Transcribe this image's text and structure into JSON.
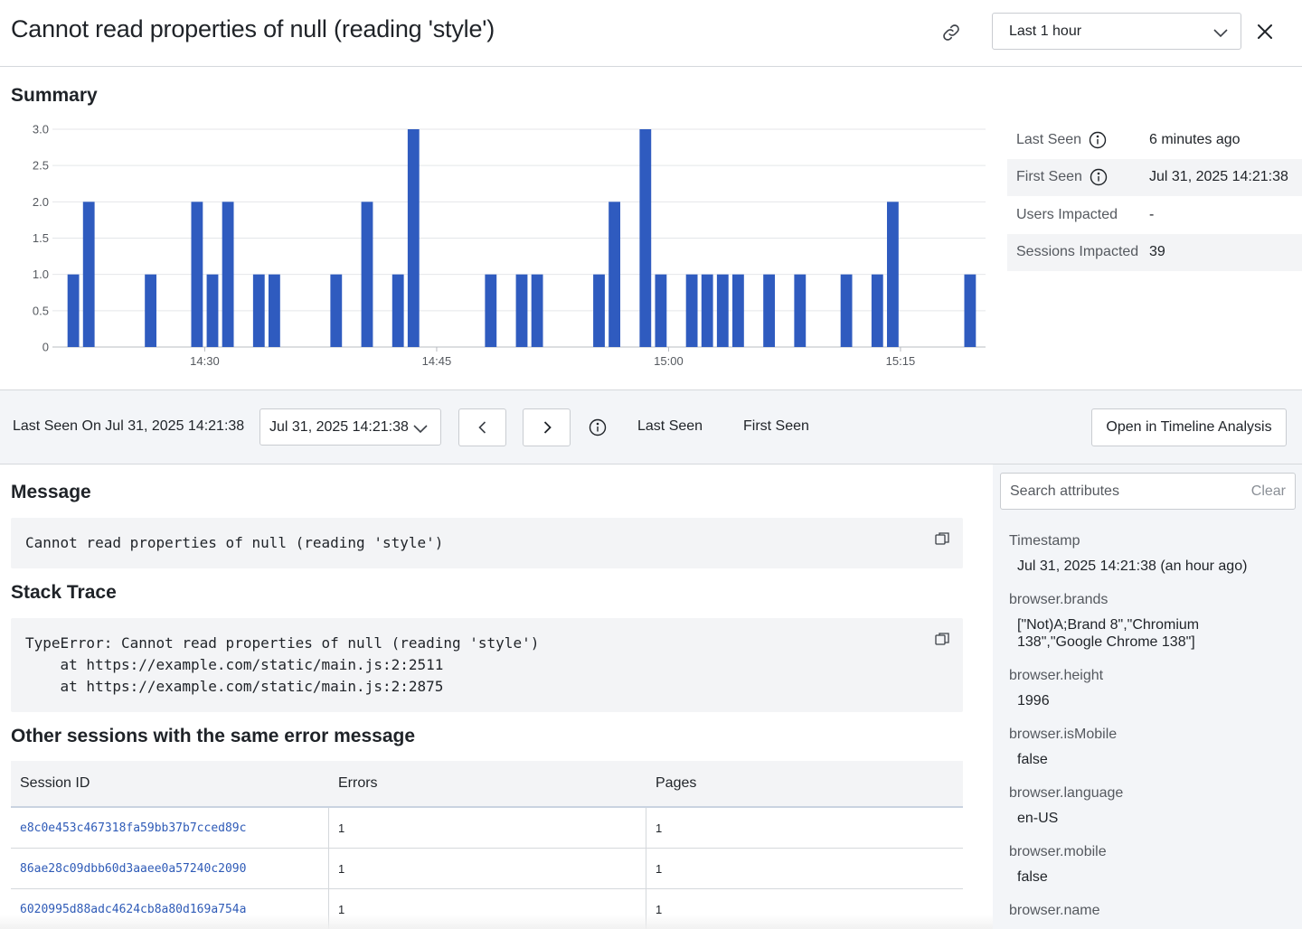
{
  "header": {
    "title": "Cannot read properties of null (reading 'style')",
    "time_range": "Last 1 hour"
  },
  "summary": {
    "title": "Summary",
    "stats": [
      {
        "label": "Last Seen",
        "value": "6 minutes ago",
        "info": true
      },
      {
        "label": "First Seen",
        "value": "Jul 31, 2025 14:21:38",
        "info": true
      },
      {
        "label": "Users Impacted",
        "value": "-",
        "info": false
      },
      {
        "label": "Sessions Impacted",
        "value": "39",
        "info": false
      }
    ]
  },
  "chart_data": {
    "type": "bar",
    "title": "",
    "xlabel": "",
    "ylabel": "",
    "ylim": [
      0,
      3
    ],
    "yticks": [
      "0",
      "0.5",
      "1.0",
      "1.5",
      "2.0",
      "2.5",
      "3.0"
    ],
    "xticks": [
      {
        "label": "14:30",
        "minute": 30
      },
      {
        "label": "14:45",
        "minute": 45
      },
      {
        "label": "15:00",
        "minute": 60
      },
      {
        "label": "15:15",
        "minute": 75
      }
    ],
    "x_range_minutes": [
      20.5,
      80.5
    ],
    "color": "#2f5bbf",
    "bar_width_minutes": 0.75,
    "points": [
      {
        "minute": 21.5,
        "value": 1
      },
      {
        "minute": 22.5,
        "value": 2
      },
      {
        "minute": 26.5,
        "value": 1
      },
      {
        "minute": 29.5,
        "value": 2
      },
      {
        "minute": 30.5,
        "value": 1
      },
      {
        "minute": 31.5,
        "value": 2
      },
      {
        "minute": 33.5,
        "value": 1
      },
      {
        "minute": 34.5,
        "value": 1
      },
      {
        "minute": 38.5,
        "value": 1
      },
      {
        "minute": 40.5,
        "value": 2
      },
      {
        "minute": 42.5,
        "value": 1
      },
      {
        "minute": 43.5,
        "value": 3
      },
      {
        "minute": 48.5,
        "value": 1
      },
      {
        "minute": 50.5,
        "value": 1
      },
      {
        "minute": 51.5,
        "value": 1
      },
      {
        "minute": 55.5,
        "value": 1
      },
      {
        "minute": 56.5,
        "value": 2
      },
      {
        "minute": 58.5,
        "value": 3
      },
      {
        "minute": 59.5,
        "value": 1
      },
      {
        "minute": 61.5,
        "value": 1
      },
      {
        "minute": 62.5,
        "value": 1
      },
      {
        "minute": 63.5,
        "value": 1
      },
      {
        "minute": 64.5,
        "value": 1
      },
      {
        "minute": 66.5,
        "value": 1
      },
      {
        "minute": 68.5,
        "value": 1
      },
      {
        "minute": 71.5,
        "value": 1
      },
      {
        "minute": 73.5,
        "value": 1
      },
      {
        "minute": 74.5,
        "value": 2
      },
      {
        "minute": 79.5,
        "value": 1
      }
    ]
  },
  "toolbar": {
    "label": "Last Seen On Jul 31, 2025 14:21:38",
    "occurrence": "Jul 31, 2025 14:21:38",
    "last_seen": "Last Seen",
    "first_seen": "First Seen",
    "timeline_button": "Open in Timeline Analysis"
  },
  "message": {
    "title": "Message",
    "text": "Cannot read properties of null (reading 'style')"
  },
  "stack": {
    "title": "Stack Trace",
    "lines": [
      "TypeError: Cannot read properties of null (reading 'style')",
      "    at https://example.com/static/main.js:2:2511",
      "    at https://example.com/static/main.js:2:2875"
    ]
  },
  "sessions": {
    "title": "Other sessions with the same error message",
    "columns": [
      "Session ID",
      "Errors",
      "Pages"
    ],
    "rows": [
      {
        "id": "e8c0e453c467318fa59bb37b7cced89c",
        "errors": "1",
        "pages": "1"
      },
      {
        "id": "86ae28c09dbb60d3aaee0a57240c2090",
        "errors": "1",
        "pages": "1"
      },
      {
        "id": "6020995d88adc4624cb8a80d169a754a",
        "errors": "1",
        "pages": "1"
      }
    ]
  },
  "attributes": {
    "search_placeholder": "Search attributes",
    "clear": "Clear",
    "items": [
      {
        "key": "Timestamp",
        "value": "Jul 31, 2025 14:21:38 (an hour ago)"
      },
      {
        "key": "browser.brands",
        "value": "[\"Not)A;Brand 8\",\"Chromium\n138\",\"Google Chrome 138\"]"
      },
      {
        "key": "browser.height",
        "value": "1996"
      },
      {
        "key": "browser.isMobile",
        "value": "false"
      },
      {
        "key": "browser.language",
        "value": "en-US"
      },
      {
        "key": "browser.mobile",
        "value": "false"
      },
      {
        "key": "browser.name",
        "value": ""
      }
    ]
  }
}
